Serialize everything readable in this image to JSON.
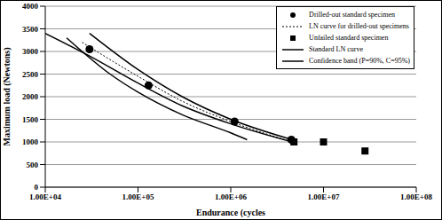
{
  "chart_data": {
    "type": "scatter",
    "x_label": "Endurance (cycles",
    "y_label": "Maximum load (Newtons)",
    "log": "x",
    "grid": true,
    "legend": "upper right",
    "xlim": [
      10000,
      100000000
    ],
    "xticks": [
      {
        "value": 10000,
        "label": "1.00E+04"
      },
      {
        "value": 100000,
        "label": "1.00E+05"
      },
      {
        "value": 1000000,
        "label": "1.00E+06"
      },
      {
        "value": 10000000,
        "label": "1.00E+07"
      },
      {
        "value": 100000000,
        "label": "1.00E+08"
      }
    ],
    "ylim": [
      0,
      4000
    ],
    "yticks": [
      0,
      500,
      1000,
      1500,
      2000,
      2500,
      3000,
      3500,
      4000
    ],
    "series": [
      {
        "name": "Drilled-out standard specimen",
        "type": "scatter",
        "marker": "circle",
        "color": "#000000",
        "x": [
          30000,
          130000,
          1100000,
          4500000
        ],
        "values": [
          3050,
          2250,
          1450,
          1050
        ]
      },
      {
        "name": "LN curve for drilled-out specimens",
        "type": "line",
        "line_style": "dotted",
        "color": "#000000",
        "x": [
          25000,
          100000,
          300000,
          1000000,
          4600000
        ],
        "values": [
          3200,
          2450,
          1900,
          1450,
          1000
        ]
      },
      {
        "name": "Unfailed standard specimen",
        "type": "scatter",
        "marker": "square",
        "color": "#000000",
        "x": [
          4800000,
          10000000,
          28000000
        ],
        "values": [
          1000,
          1000,
          800
        ]
      },
      {
        "name": "Standard LN curve",
        "type": "line",
        "line_style": "solid",
        "color": "#000000",
        "x": [
          10000,
          30000,
          100000,
          300000,
          1000000,
          4600000
        ],
        "values": [
          3400,
          2900,
          2300,
          1800,
          1400,
          1000
        ]
      },
      {
        "name": "Confidence band (P=90%, C=95%)",
        "type": "line",
        "line_style": "solid",
        "color": "#000000",
        "x": [
          30000,
          100000,
          300000,
          1000000,
          4600000
        ],
        "values": [
          3400,
          2600,
          2000,
          1500,
          1050
        ]
      },
      {
        "name": "Confidence band (P=90%, C=95%)",
        "type": "line",
        "line_style": "solid",
        "color": "#000000",
        "x": [
          17000,
          50000,
          100000,
          300000,
          1000000,
          1500000
        ],
        "values": [
          3300,
          2500,
          2100,
          1600,
          1200,
          1050
        ]
      }
    ]
  }
}
